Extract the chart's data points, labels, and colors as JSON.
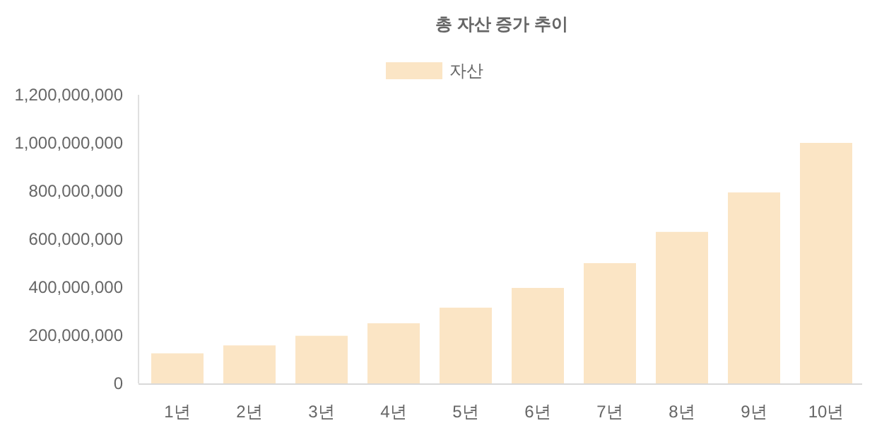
{
  "chart_data": {
    "type": "bar",
    "title": "총 자산 증가 추이",
    "categories": [
      "1년",
      "2년",
      "3년",
      "4년",
      "5년",
      "6년",
      "7년",
      "8년",
      "9년",
      "10년"
    ],
    "series": [
      {
        "name": "자산",
        "color": "#fbe5c5",
        "values": [
          125000000,
          158000000,
          198000000,
          250000000,
          315000000,
          397000000,
          500000000,
          630000000,
          794000000,
          1000000000
        ]
      }
    ],
    "ylim": [
      0,
      1200000000
    ],
    "yticks": [
      0,
      {
        "value": 200000000,
        "label": "200,000,000"
      },
      {
        "value": 400000000,
        "label": "400,000,000"
      },
      {
        "value": 600000000,
        "label": "600,000,000"
      },
      {
        "value": 800000000,
        "label": "800,000,000"
      },
      {
        "value": 1000000000,
        "label": "1,000,000,000"
      },
      {
        "value": 1200000000,
        "label": "1,200,000,000"
      }
    ],
    "grid": false,
    "legend": "top"
  }
}
